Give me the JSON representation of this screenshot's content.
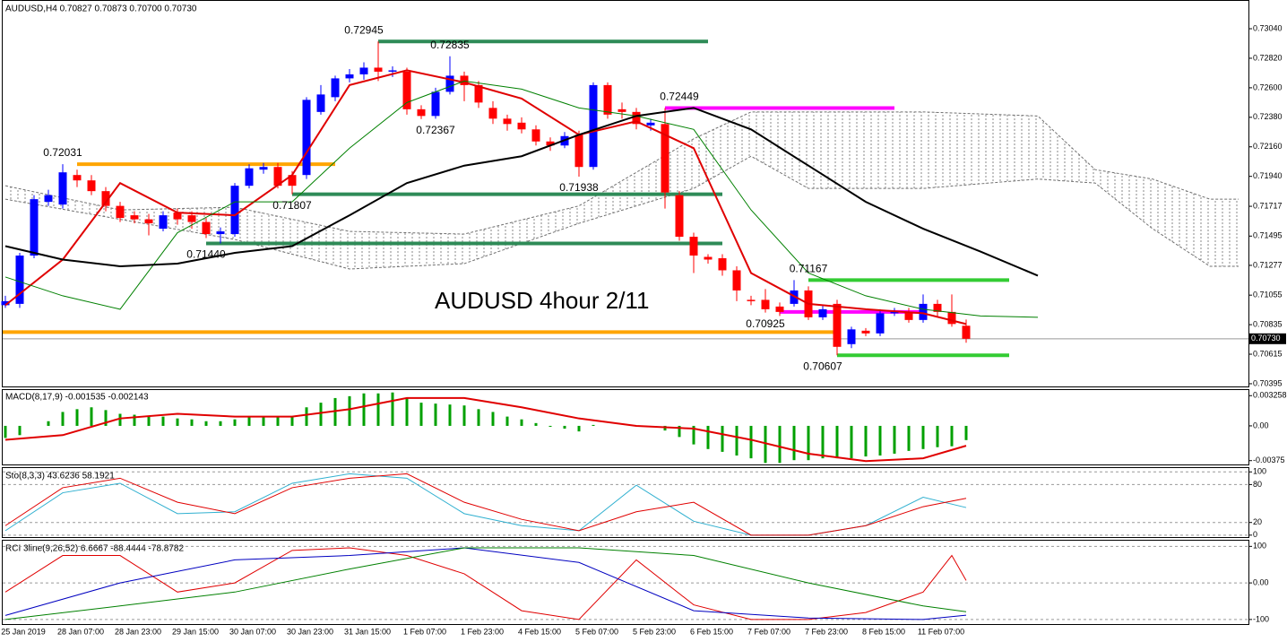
{
  "chart_data": [
    {
      "type": "candlestick",
      "title": "AUDUSD,H4  0.70827 0.70873 0.70700 0.70730",
      "annotation": "AUDUSD 4hour 2/11",
      "categories": [
        null,
        "25 Jan 2019",
        null,
        null,
        null,
        "28 Jan 07:00",
        null,
        null,
        null,
        "28 Jan 23:00",
        null,
        null,
        null,
        "29 Jan 15:00",
        null,
        null,
        null,
        "30 Jan 07:00",
        null,
        null,
        null,
        "30 Jan 23:00",
        null,
        null,
        null,
        "31 Jan 15:00",
        null,
        null,
        null,
        "1 Feb 07:00",
        null,
        null,
        null,
        "1 Feb 23:00",
        null,
        null,
        null,
        "4 Feb 15:00",
        null,
        null,
        null,
        "5 Feb 07:00",
        null,
        null,
        null,
        "5 Feb 23:00",
        null,
        null,
        null,
        "6 Feb 15:00",
        null,
        null,
        null,
        "7 Feb 07:00",
        null,
        null,
        null,
        "7 Feb 23:00",
        null,
        null,
        null,
        "8 Feb 15:00",
        null,
        null,
        null,
        "11 Feb 07:00",
        null,
        null
      ],
      "open": [
        0.7098,
        0.7099,
        0.7135,
        0.7175,
        0.7173,
        0.7195,
        0.7191,
        0.7183,
        0.7172,
        0.7165,
        0.7162,
        0.7155,
        0.7167,
        0.7165,
        0.716,
        0.7151,
        0.7151,
        0.7187,
        0.7199,
        0.7201,
        0.7195,
        0.7195,
        0.7242,
        0.7253,
        0.7267,
        0.727,
        0.7275,
        0.7272,
        0.7272,
        0.7244,
        0.7239,
        0.7257,
        0.7269,
        0.7262,
        0.7245,
        0.7237,
        0.7234,
        0.7229,
        0.722,
        0.7217,
        0.7225,
        0.7201,
        0.7262,
        0.7244,
        0.7242,
        0.7232,
        0.7233,
        0.718,
        0.7149,
        0.7134,
        0.7133,
        0.7124,
        0.7102,
        0.7102,
        0.7097,
        0.7099,
        0.7109,
        0.7089,
        0.7099,
        0.7069,
        0.7079,
        0.7077,
        0.7092,
        0.7093,
        0.7087,
        0.7099,
        0.7093,
        0.70827
      ],
      "high": [
        0.7105,
        0.7137,
        0.718,
        0.7184,
        0.72031,
        0.7199,
        0.7195,
        0.7186,
        0.7175,
        0.7168,
        0.7166,
        0.7168,
        0.717,
        0.7168,
        0.7163,
        0.7156,
        0.7189,
        0.7203,
        0.7204,
        0.7204,
        0.7198,
        0.7253,
        0.7262,
        0.7269,
        0.7274,
        0.7279,
        0.72945,
        0.7276,
        0.7275,
        0.7247,
        0.726,
        0.72835,
        0.7272,
        0.7265,
        0.725,
        0.724,
        0.7238,
        0.7232,
        0.7223,
        0.7227,
        0.7228,
        0.7264,
        0.7264,
        0.7249,
        0.7245,
        0.7237,
        0.72449,
        0.7183,
        0.7152,
        0.7136,
        0.7136,
        0.7127,
        0.7105,
        0.711,
        0.71,
        0.71167,
        0.7112,
        0.7098,
        0.7102,
        0.7082,
        0.7081,
        0.7095,
        0.7096,
        0.7096,
        0.7106,
        0.7102,
        0.7106,
        0.70873
      ],
      "low": [
        0.7096,
        0.7096,
        0.7133,
        0.7172,
        0.717,
        0.7186,
        0.718,
        0.7168,
        0.716,
        0.7159,
        0.715,
        0.7153,
        0.7158,
        0.7155,
        0.7148,
        0.7144,
        0.7149,
        0.7185,
        0.7196,
        0.7185,
        0.71807,
        0.7192,
        0.724,
        0.725,
        0.7264,
        0.7266,
        0.7265,
        0.7268,
        0.724,
        0.72367,
        0.7237,
        0.7255,
        0.725,
        0.7245,
        0.7233,
        0.7228,
        0.7226,
        0.7217,
        0.7213,
        0.7215,
        0.71938,
        0.7199,
        0.7237,
        0.7237,
        0.7229,
        0.7228,
        0.717,
        0.7146,
        0.7122,
        0.7129,
        0.712,
        0.7101,
        0.7098,
        0.70925,
        0.709,
        0.7097,
        0.7087,
        0.7087,
        0.70607,
        0.7066,
        0.7075,
        0.7075,
        0.709,
        0.7085,
        0.7085,
        0.709,
        0.7082,
        0.707
      ],
      "close": [
        0.7101,
        0.7135,
        0.7177,
        0.718,
        0.7197,
        0.7191,
        0.7183,
        0.7172,
        0.7163,
        0.7162,
        0.7159,
        0.7165,
        0.7162,
        0.716,
        0.7151,
        0.7153,
        0.7187,
        0.72,
        0.7201,
        0.7187,
        0.7187,
        0.7251,
        0.7255,
        0.7267,
        0.727,
        0.7275,
        0.7272,
        0.7273,
        0.7244,
        0.7239,
        0.7257,
        0.7269,
        0.7262,
        0.7249,
        0.7237,
        0.7233,
        0.7229,
        0.722,
        0.7217,
        0.7224,
        0.7201,
        0.7262,
        0.724,
        0.7242,
        0.7233,
        0.7234,
        0.7182,
        0.7149,
        0.7135,
        0.7132,
        0.7124,
        0.7109,
        0.7101,
        0.7095,
        0.7093,
        0.7109,
        0.7089,
        0.7095,
        0.7067,
        0.708,
        0.7077,
        0.7092,
        0.7093,
        0.7087,
        0.7099,
        0.7093,
        0.7084,
        0.7073
      ],
      "up_color": "#0000ff",
      "down_color": "#ff0000",
      "ylim": [
        0.70368,
        0.73254
      ],
      "yticks": [
        {
          "value": 0.7304,
          "label": "0.73040"
        },
        {
          "value": 0.7282,
          "label": "0.72820"
        },
        {
          "value": 0.726,
          "label": "0.72600"
        },
        {
          "value": 0.7238,
          "label": "0.72380"
        },
        {
          "value": 0.7216,
          "label": "0.72160"
        },
        {
          "value": 0.7194,
          "label": "0.71940"
        },
        0.71717,
        0.71495,
        0.71277,
        0.71055,
        0.70835,
        0.70615,
        0.70395
      ],
      "current_label": "0.70730",
      "lines": [
        {
          "color": "#e00000",
          "width": 2,
          "x": [
            0,
            4,
            8,
            12,
            16,
            20,
            24,
            28,
            32,
            36,
            40,
            44,
            48,
            52,
            56,
            60,
            64,
            67
          ],
          "values": [
            0.7098,
            0.7132,
            0.7189,
            0.7167,
            0.7165,
            0.7195,
            0.7262,
            0.7273,
            0.7264,
            0.7252,
            0.7225,
            0.7235,
            0.7215,
            0.7122,
            0.7099,
            0.7095,
            0.7092,
            0.7084
          ]
        },
        {
          "color": "#008000",
          "width": 1,
          "x": [
            0,
            4,
            8,
            12,
            16,
            20,
            24,
            28,
            32,
            36,
            40,
            44,
            48,
            52,
            56,
            60,
            64,
            68,
            72
          ],
          "values": [
            0.7119,
            0.7105,
            0.7095,
            0.7152,
            0.7175,
            0.7175,
            0.7215,
            0.7249,
            0.7265,
            0.7259,
            0.7245,
            0.7239,
            0.7229,
            0.7169,
            0.7122,
            0.7105,
            0.7095,
            0.709,
            0.7089
          ]
        },
        {
          "color": "#000000",
          "width": 2,
          "x": [
            0,
            4,
            8,
            12,
            16,
            20,
            24,
            28,
            32,
            36,
            40,
            44,
            48,
            52,
            56,
            60,
            64,
            68,
            72
          ],
          "values": [
            0.7142,
            0.7132,
            0.7127,
            0.7129,
            0.7137,
            0.7142,
            0.7165,
            0.7189,
            0.7202,
            0.7209,
            0.7225,
            0.7239,
            0.7245,
            0.7229,
            0.7202,
            0.7175,
            0.7155,
            0.7138,
            0.712
          ]
        }
      ],
      "cloud": {
        "color": "#707070",
        "x": [
          0,
          8,
          16,
          24,
          32,
          40,
          48,
          52,
          56,
          64,
          72,
          76,
          80,
          84,
          86
        ],
        "upper": [
          0.7187,
          0.7169,
          0.7171,
          0.7153,
          0.7151,
          0.7172,
          0.7222,
          0.7242,
          0.7242,
          0.7242,
          0.7239,
          0.7199,
          0.7192,
          0.7177,
          0.7177
        ],
        "lower": [
          0.7177,
          0.7162,
          0.7147,
          0.7125,
          0.7129,
          0.7159,
          0.7185,
          0.7209,
          0.7185,
          0.7185,
          0.7192,
          0.7189,
          0.7155,
          0.7127,
          0.7127
        ]
      },
      "levels": [
        {
          "color": "#ffa500",
          "value": 0.72031,
          "x": [
            5,
            23
          ]
        },
        {
          "color": "#2e8b57",
          "value": 0.72945,
          "x": [
            26,
            49
          ]
        },
        {
          "color": "#2e8b57",
          "value": 0.71807,
          "x": [
            20,
            50
          ]
        },
        {
          "color": "#2e8b57",
          "value": 0.7144,
          "x": [
            14,
            50
          ]
        },
        {
          "color": "#ff00ff",
          "value": 0.72449,
          "x": [
            46,
            62
          ]
        },
        {
          "color": "#ff00ff",
          "value": 0.7093,
          "x": [
            54,
            64
          ]
        },
        {
          "color": "#33cc33",
          "value": 0.71167,
          "x": [
            56,
            70
          ]
        },
        {
          "color": "#33cc33",
          "value": 0.70607,
          "x": [
            58,
            70
          ]
        },
        {
          "color": "#ffa500",
          "value": 0.7078,
          "x": [
            0,
            58
          ]
        }
      ],
      "price_labels": [
        {
          "value": 0.72031,
          "x": 4,
          "position": "above"
        },
        {
          "value": 0.72945,
          "x": 25,
          "position": "above"
        },
        {
          "value": 0.72835,
          "x": 31,
          "position": "above"
        },
        {
          "value": 0.72367,
          "x": 30,
          "position": "below"
        },
        {
          "value": 0.71938,
          "x": 40,
          "position": "below"
        },
        {
          "value": 0.71807,
          "x": 20,
          "position": "below"
        },
        {
          "value": 0.7144,
          "label": "0.71440",
          "x": 14,
          "position": "below"
        },
        {
          "value": 0.72449,
          "x": 47,
          "position": "above"
        },
        {
          "value": 0.71167,
          "x": 56,
          "position": "above"
        },
        {
          "value": 0.70925,
          "x": 53,
          "position": "below"
        },
        {
          "value": 0.70607,
          "x": 57,
          "position": "below"
        }
      ]
    },
    {
      "type": "bar",
      "title": "MACD(8,17,9) -0.001535 -0.002143",
      "color": "#00a000",
      "values": [
        -0.0013,
        -0.001,
        0,
        0.0005,
        0.0015,
        0.0018,
        0.002,
        0.0017,
        0.0013,
        0.0012,
        0.001,
        0.001,
        0.0008,
        0.0007,
        0.0005,
        0.0005,
        0.0007,
        0.001,
        0.001,
        0.001,
        0.001,
        0.002,
        0.0025,
        0.003,
        0.0032,
        0.0035,
        0.0035,
        0.0036,
        0.003,
        0.0025,
        0.0024,
        0.0023,
        0.0022,
        0.0018,
        0.0015,
        0.001,
        0.0007,
        0.0003,
        -0.0001,
        -0.0003,
        -0.0006,
        0.0001,
        0,
        0,
        0,
        0,
        -0.0005,
        -0.0012,
        -0.002,
        -0.0025,
        -0.0028,
        -0.0032,
        -0.0035,
        -0.004,
        -0.004,
        -0.0037,
        -0.0037,
        -0.0035,
        -0.0035,
        -0.0035,
        -0.0033,
        -0.0032,
        -0.003,
        -0.0027,
        -0.0025,
        -0.0023,
        -0.0022,
        -0.001535
      ],
      "signal": {
        "color": "#e00000",
        "x": [
          0,
          4,
          8,
          12,
          16,
          20,
          24,
          28,
          32,
          36,
          40,
          44,
          48,
          52,
          56,
          60,
          64,
          67
        ],
        "values": [
          -0.0015,
          -0.001,
          0.0008,
          0.0013,
          0.001,
          0.001,
          0.0018,
          0.003,
          0.003,
          0.002,
          0.0008,
          0,
          -0.0003,
          -0.0015,
          -0.003,
          -0.0038,
          -0.0035,
          -0.002143
        ]
      },
      "ylim": [
        -0.00426,
        0.00396
      ],
      "yticks": [
        0.003258,
        {
          "value": 0,
          "label": "0.00"
        },
        -0.00375
      ]
    },
    {
      "type": "line",
      "title": "Sto(8,3,3) 43.6236 58.1921",
      "series": [
        {
          "color": "#30b0d0",
          "x": [
            0,
            4,
            8,
            12,
            16,
            20,
            24,
            28,
            32,
            36,
            40,
            44,
            48,
            52,
            56,
            60,
            64,
            67
          ],
          "values": [
            7,
            67,
            82,
            34,
            37,
            82,
            97,
            90,
            34,
            15,
            7,
            79,
            22,
            0,
            0,
            15,
            60,
            43.6236
          ]
        },
        {
          "color": "#e00000",
          "x": [
            0,
            4,
            8,
            12,
            16,
            20,
            24,
            28,
            32,
            36,
            40,
            44,
            48,
            52,
            56,
            60,
            64,
            67
          ],
          "values": [
            15,
            75,
            90,
            52,
            34,
            75,
            90,
            97,
            52,
            25,
            7,
            37,
            52,
            0,
            0,
            15,
            45,
            58.1921
          ]
        }
      ],
      "ylim": [
        -4.5,
        107.5
      ],
      "yticks": [
        100,
        80,
        20,
        0
      ],
      "grid": "dashed"
    },
    {
      "type": "line",
      "title": "RCI 3line(9,26,52) 6.6667 -88.4444 -78.8782",
      "series": [
        {
          "color": "#e00000",
          "x": [
            0,
            4,
            8,
            12,
            16,
            20,
            24,
            28,
            32,
            36,
            40,
            44,
            48,
            52,
            56,
            60,
            64,
            66,
            67
          ],
          "values": [
            -25,
            75,
            75,
            -25,
            0,
            89,
            96,
            75,
            25,
            -76,
            -100,
            63,
            -60,
            -100,
            -100,
            -81,
            -25,
            75,
            6.6667
          ]
        },
        {
          "color": "#0000c0",
          "x": [
            0,
            8,
            16,
            24,
            32,
            40,
            48,
            56,
            64,
            67
          ],
          "values": [
            -89,
            0,
            63,
            75,
            96,
            56,
            -76,
            -96,
            -100,
            -88.4444
          ]
        },
        {
          "color": "#008000",
          "x": [
            0,
            8,
            16,
            24,
            32,
            40,
            48,
            56,
            64,
            67
          ],
          "values": [
            -100,
            -63,
            -25,
            38,
            96,
            96,
            75,
            0,
            -63,
            -78.8782
          ]
        }
      ],
      "ylim": [
        -115,
        118
      ],
      "yticks": [
        100,
        {
          "value": 0,
          "label": "0.00"
        },
        -100
      ],
      "grid": "dashed"
    }
  ]
}
